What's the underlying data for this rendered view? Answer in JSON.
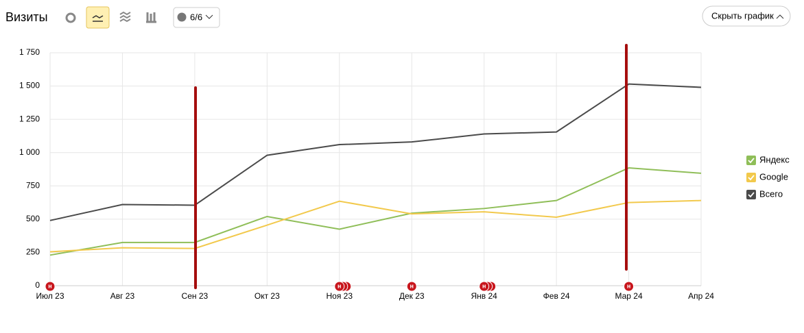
{
  "toolbar": {
    "title": "Визиты",
    "comments_button": "6/6",
    "hide_button": "Скрыть график"
  },
  "chart_data": {
    "type": "line",
    "categories": [
      "Июл 23",
      "Авг 23",
      "Сен 23",
      "Окт 23",
      "Ноя 23",
      "Дек 23",
      "Янв 24",
      "Фев 24",
      "Мар 24",
      "Апр 24"
    ],
    "series": [
      {
        "name": "Яндекс",
        "color": "#8fbe58",
        "values": [
          230,
          325,
          325,
          520,
          425,
          545,
          580,
          640,
          885,
          845
        ]
      },
      {
        "name": "Google",
        "color": "#f2c94c",
        "values": [
          255,
          285,
          280,
          455,
          635,
          540,
          555,
          515,
          625,
          640
        ]
      },
      {
        "name": "Всего",
        "color": "#4a4a4a",
        "values": [
          490,
          610,
          605,
          980,
          1060,
          1080,
          1140,
          1155,
          1515,
          1490
        ]
      }
    ],
    "ylim": [
      0,
      1750
    ],
    "yticks": [
      0,
      250,
      500,
      750,
      {
        "value": 1000,
        "label": "1 000"
      },
      {
        "value": 1250,
        "label": "1 250"
      },
      {
        "value": 1500,
        "label": "1 500"
      },
      {
        "value": 1750,
        "label": "1 750"
      }
    ],
    "grid": true,
    "legend": "right",
    "event_label": "н"
  }
}
